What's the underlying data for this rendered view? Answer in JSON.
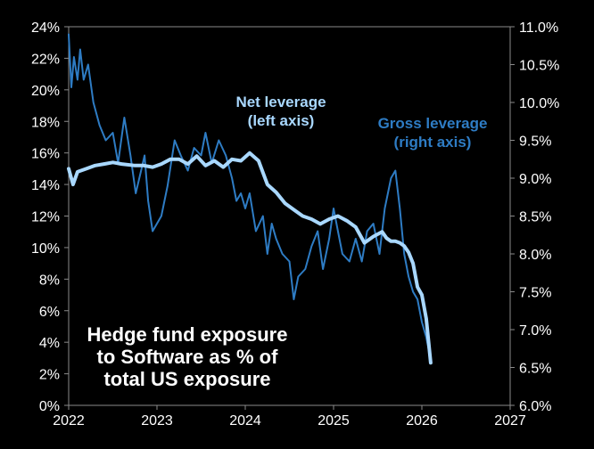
{
  "chart_data": {
    "type": "line",
    "title_lines": [
      "Hedge fund exposure",
      "to Software as % of",
      "total US exposure"
    ],
    "x_axis": {
      "min": 2022,
      "max": 2027,
      "tick_labels": [
        "2022",
        "2023",
        "2024",
        "2025",
        "2026",
        "2027"
      ]
    },
    "left_axis": {
      "min": 0,
      "max": 24,
      "tick_labels": [
        "0%",
        "2%",
        "4%",
        "6%",
        "8%",
        "10%",
        "12%",
        "14%",
        "16%",
        "18%",
        "20%",
        "22%",
        "24%"
      ]
    },
    "right_axis": {
      "min": 6.0,
      "max": 11.0,
      "tick_labels": [
        "6.0%",
        "6.5%",
        "7.0%",
        "7.5%",
        "8.0%",
        "8.5%",
        "9.0%",
        "9.5%",
        "10.0%",
        "10.5%",
        "11.0%"
      ]
    },
    "series": [
      {
        "name": "Net leverage",
        "label_lines": [
          "Net leverage",
          "(left axis)"
        ],
        "axis": "left",
        "color": "#a9d8ff",
        "x": [
          2022.0,
          2022.05,
          2022.1,
          2022.2,
          2022.3,
          2022.4,
          2022.5,
          2022.6,
          2022.75,
          2022.85,
          2022.95,
          2023.05,
          2023.15,
          2023.25,
          2023.35,
          2023.45,
          2023.55,
          2023.65,
          2023.75,
          2023.85,
          2023.95,
          2024.05,
          2024.15,
          2024.25,
          2024.35,
          2024.45,
          2024.55,
          2024.65,
          2024.75,
          2024.85,
          2024.95,
          2025.05,
          2025.15,
          2025.25,
          2025.35,
          2025.45,
          2025.55,
          2025.6,
          2025.65,
          2025.7,
          2025.75,
          2025.8,
          2025.85,
          2025.9,
          2025.95,
          2026.0,
          2026.05,
          2026.1
        ],
        "values": [
          15.0,
          14.0,
          14.8,
          15.0,
          15.2,
          15.3,
          15.4,
          15.3,
          15.2,
          15.2,
          15.1,
          15.3,
          15.6,
          15.6,
          15.3,
          15.8,
          15.2,
          15.5,
          15.1,
          15.6,
          15.5,
          16.0,
          15.5,
          14.0,
          13.5,
          12.8,
          12.4,
          12.0,
          11.8,
          11.5,
          11.8,
          12.0,
          11.7,
          11.3,
          10.3,
          10.7,
          11.0,
          10.6,
          10.4,
          10.4,
          10.3,
          10.1,
          9.7,
          9.0,
          7.5,
          7.0,
          5.5,
          2.7
        ]
      },
      {
        "name": "Gross leverage",
        "label_lines": [
          "Gross leverage",
          "(right axis)"
        ],
        "axis": "right",
        "color": "#2e7cc4",
        "x": [
          2022.0,
          2022.03,
          2022.06,
          2022.1,
          2022.13,
          2022.17,
          2022.22,
          2022.28,
          2022.35,
          2022.42,
          2022.5,
          2022.56,
          2022.63,
          2022.7,
          2022.76,
          2022.82,
          2022.86,
          2022.9,
          2022.95,
          2023.0,
          2023.05,
          2023.12,
          2023.2,
          2023.27,
          2023.35,
          2023.42,
          2023.5,
          2023.55,
          2023.62,
          2023.7,
          2023.78,
          2023.85,
          2023.9,
          2023.95,
          2024.0,
          2024.05,
          2024.12,
          2024.2,
          2024.25,
          2024.3,
          2024.35,
          2024.42,
          2024.5,
          2024.55,
          2024.6,
          2024.68,
          2024.75,
          2024.82,
          2024.88,
          2024.95,
          2025.0,
          2025.05,
          2025.1,
          2025.18,
          2025.25,
          2025.32,
          2025.38,
          2025.45,
          2025.52,
          2025.58,
          2025.65,
          2025.7,
          2025.75,
          2025.8,
          2025.85,
          2025.9,
          2025.95,
          2026.0,
          2026.05,
          2026.1
        ],
        "values": [
          10.9,
          10.2,
          10.6,
          10.3,
          10.7,
          10.3,
          10.5,
          10.0,
          9.7,
          9.5,
          9.6,
          9.2,
          9.8,
          9.3,
          8.8,
          9.1,
          9.3,
          8.7,
          8.3,
          8.4,
          8.5,
          8.9,
          9.5,
          9.3,
          9.1,
          9.4,
          9.3,
          9.6,
          9.2,
          9.5,
          9.3,
          9.0,
          8.7,
          8.8,
          8.6,
          8.8,
          8.3,
          8.5,
          8.0,
          8.4,
          8.2,
          8.0,
          7.9,
          7.4,
          7.7,
          7.8,
          8.1,
          8.3,
          7.8,
          8.2,
          8.6,
          8.3,
          8.0,
          7.9,
          8.2,
          7.9,
          8.3,
          8.4,
          8.0,
          8.6,
          9.0,
          9.1,
          8.6,
          8.0,
          7.7,
          7.5,
          7.4,
          7.1,
          6.9,
          6.6
        ]
      }
    ]
  }
}
